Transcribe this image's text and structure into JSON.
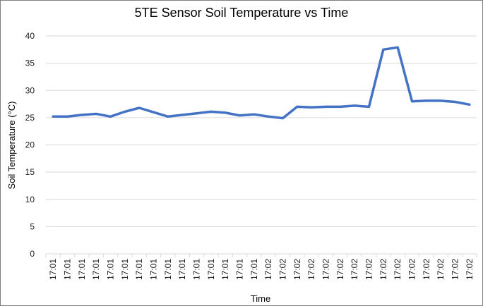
{
  "chart_data": {
    "type": "line",
    "title": "5TE Sensor  Soil Temperature  vs Time",
    "xlabel": "Time",
    "ylabel": "Soil Temperature (°C)",
    "ylim": [
      0,
      40
    ],
    "yticks": [
      0,
      5,
      10,
      15,
      20,
      25,
      30,
      35,
      40
    ],
    "grid": true,
    "legend": "none",
    "categories": [
      "17:01",
      "17:01",
      "17:01",
      "17:01",
      "17:01",
      "17:01",
      "17:01",
      "17:01",
      "17:01",
      "17:01",
      "17:01",
      "17:01",
      "17:01",
      "17:01",
      "17:01",
      "17:02",
      "17:02",
      "17:02",
      "17:02",
      "17:02",
      "17:02",
      "17:02",
      "17:02",
      "17:02",
      "17:02",
      "17:02",
      "17:02",
      "17:02",
      "17:02",
      "17:02"
    ],
    "series": [
      {
        "name": "Soil Temperature",
        "color": "#4472c4",
        "values": [
          25.2,
          25.2,
          25.5,
          25.7,
          25.2,
          26.1,
          26.8,
          26.0,
          25.2,
          25.5,
          25.8,
          26.1,
          25.9,
          25.4,
          25.6,
          25.2,
          24.9,
          27.0,
          26.9,
          27.0,
          27.0,
          27.2,
          27.0,
          37.5,
          37.9,
          28.0,
          28.1,
          28.1,
          27.9,
          27.4
        ]
      }
    ]
  }
}
